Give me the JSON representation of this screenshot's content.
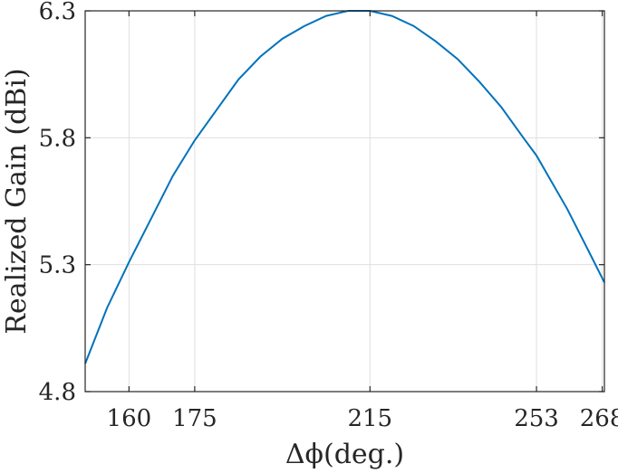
{
  "chart_data": {
    "type": "line",
    "title": "",
    "xlabel": "Δϕ(deg.)",
    "ylabel": "Realized Gain (dBi)",
    "xlim": [
      150,
      268.5
    ],
    "ylim": [
      4.8,
      6.3
    ],
    "xticks": [
      160,
      175,
      215,
      253,
      268
    ],
    "yticks": [
      4.8,
      5.3,
      5.8,
      6.3
    ],
    "grid": true,
    "legend": "none",
    "series": [
      {
        "color": "#0072BD",
        "x": [
          150,
          155,
          160,
          165,
          170,
          175,
          180,
          185,
          190,
          195,
          200,
          205,
          210,
          215,
          220,
          225,
          230,
          235,
          240,
          245,
          250,
          253,
          255,
          260,
          265,
          268.5
        ],
        "y": [
          4.91,
          5.13,
          5.31,
          5.48,
          5.65,
          5.79,
          5.91,
          6.03,
          6.12,
          6.19,
          6.24,
          6.28,
          6.3,
          6.3,
          6.28,
          6.24,
          6.18,
          6.11,
          6.02,
          5.92,
          5.8,
          5.73,
          5.67,
          5.52,
          5.35,
          5.23
        ]
      }
    ]
  }
}
